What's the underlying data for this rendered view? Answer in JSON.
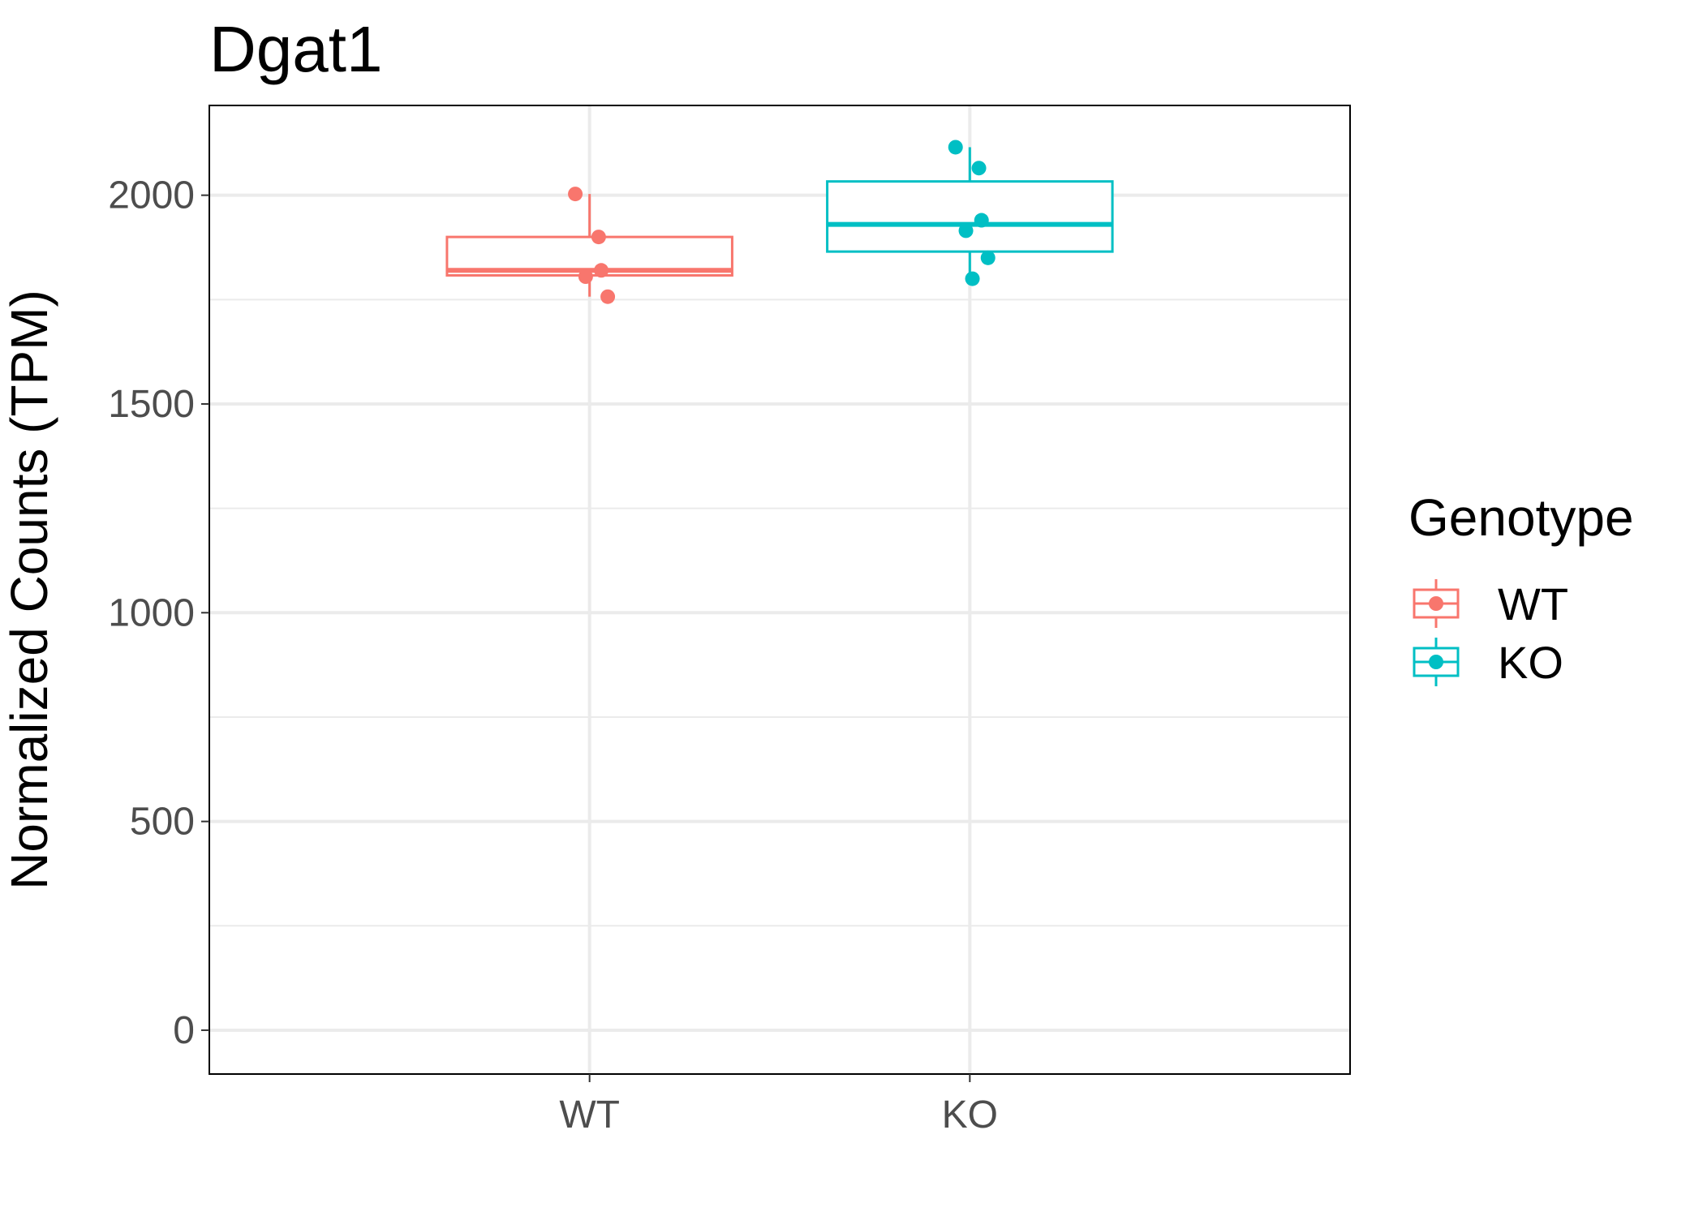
{
  "chart_data": {
    "type": "box",
    "title": "Dgat1",
    "xlabel": "",
    "ylabel": "Normalized Counts (TPM)",
    "categories": [
      "WT",
      "KO"
    ],
    "ylim": [
      -105,
      2215
    ],
    "yticks": [
      0,
      500,
      1000,
      1500,
      2000
    ],
    "grid": true,
    "legend": {
      "title": "Genotype",
      "position": "right",
      "entries": [
        "WT",
        "KO"
      ]
    },
    "colors": {
      "WT": "#F8766D",
      "KO": "#00BFC4"
    },
    "boxes": [
      {
        "name": "WT",
        "min": 1757,
        "q1": 1808,
        "median": 1820,
        "q3": 1900,
        "max": 2003
      },
      {
        "name": "KO",
        "min": 1800,
        "q1": 1865,
        "median": 1930,
        "q3": 2033,
        "max": 2115
      }
    ],
    "points": [
      {
        "group": "WT",
        "values": [
          2003,
          1900,
          1820,
          1805,
          1757
        ]
      },
      {
        "group": "KO",
        "values": [
          2115,
          2065,
          1940,
          1915,
          1850,
          1800
        ]
      }
    ]
  }
}
